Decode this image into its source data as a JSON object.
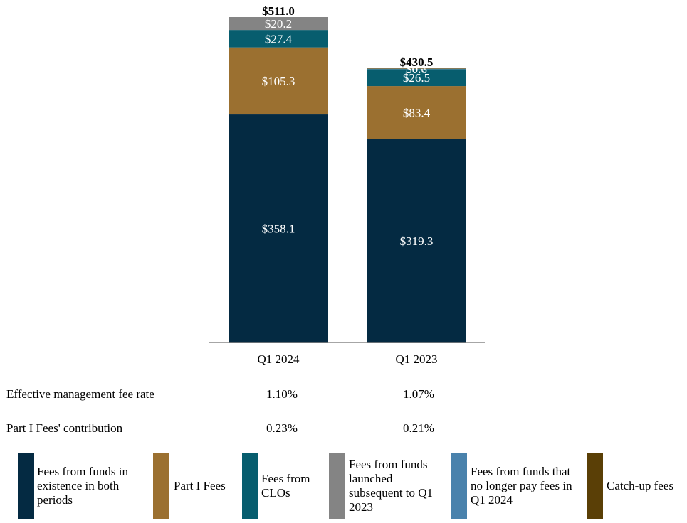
{
  "chart_data": {
    "type": "bar",
    "stacked": true,
    "categories": [
      "Q1 2024",
      "Q1 2023"
    ],
    "totals": [
      "$511.0",
      "$430.5"
    ],
    "series": [
      {
        "name": "Fees from funds in existence in both periods",
        "color": "#042a42",
        "values": [
          358.1,
          319.3
        ],
        "labels": [
          "$358.1",
          "$319.3"
        ]
      },
      {
        "name": "Part I Fees",
        "color": "#9b7030",
        "values": [
          105.3,
          83.4
        ],
        "labels": [
          "$105.3",
          "$83.4"
        ]
      },
      {
        "name": "Fees from CLOs",
        "color": "#075d6e",
        "values": [
          27.4,
          26.5
        ],
        "labels": [
          "$27.4",
          "$26.5"
        ]
      },
      {
        "name": "Fees from funds launched subsequent to Q1 2023",
        "color": "#848484",
        "values": [
          20.2,
          0
        ],
        "labels": [
          "$20.2",
          ""
        ]
      },
      {
        "name": "Fees from funds that no longer pay fees in Q1 2024",
        "color": "#4a82ac",
        "values": [
          0,
          0.6
        ],
        "labels": [
          "",
          "$0.6"
        ]
      },
      {
        "name": "Catch-up fees",
        "color": "#5a3f06",
        "values": [
          0,
          0.7
        ],
        "labels": [
          "",
          "$0.7"
        ]
      }
    ]
  },
  "metrics": [
    {
      "name": "Effective management fee rate",
      "values": [
        "1.10%",
        "1.07%"
      ]
    },
    {
      "name": "Part I Fees' contribution",
      "values": [
        "0.23%",
        "0.21%"
      ]
    }
  ],
  "legend": [
    {
      "label": "Fees from funds in existence in both periods",
      "color": "#042a42",
      "icon": "swatch"
    },
    {
      "label": "Part I Fees",
      "color": "#9b7030",
      "icon": "swatch"
    },
    {
      "label": "Fees from CLOs",
      "color": "#075d6e",
      "icon": "swatch"
    },
    {
      "label": "Fees from funds launched subsequent to Q1 2023",
      "color": "#848484",
      "icon": "swatch"
    },
    {
      "label": "Fees from funds that no longer pay fees in Q1 2024",
      "color": "#4a82ac",
      "icon": "swatch"
    },
    {
      "label": "Catch-up fees",
      "color": "#5a3f06",
      "icon": "swatch"
    }
  ]
}
